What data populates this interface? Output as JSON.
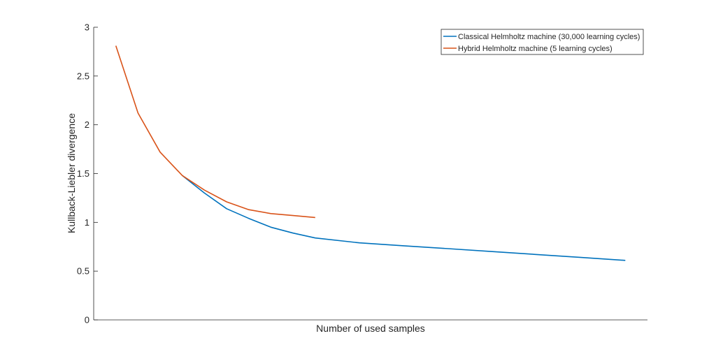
{
  "chart_data": {
    "type": "line",
    "title": "",
    "xlabel": "Number of used samples",
    "ylabel": "Kullback-Liebler divergence",
    "ylim": [
      0,
      3
    ],
    "yticks": [
      0,
      0.5,
      1,
      1.5,
      2,
      2.5,
      3
    ],
    "ytick_labels": [
      "0",
      "0.5",
      "1",
      "1.5",
      "2",
      "2.5",
      "3"
    ],
    "xtick_labels": [],
    "grid": false,
    "legend_position": "top-right",
    "series": [
      {
        "name": "Classical Helmholtz machine (30,000 learning cycles)",
        "color": "#0072BD",
        "x": [
          4,
          5,
          6,
          7,
          8,
          9,
          10,
          12,
          14,
          16,
          18,
          20,
          22,
          24
        ],
        "y": [
          1.48,
          1.3,
          1.14,
          1.04,
          0.95,
          0.89,
          0.84,
          0.79,
          0.76,
          0.73,
          0.7,
          0.67,
          0.64,
          0.61
        ]
      },
      {
        "name": "Hybrid Helmholtz machine (5 learning cycles)",
        "color": "#D95319",
        "x": [
          1,
          2,
          3,
          4,
          5,
          6,
          7,
          8,
          9,
          10
        ],
        "y": [
          2.81,
          2.12,
          1.72,
          1.48,
          1.33,
          1.21,
          1.13,
          1.09,
          1.07,
          1.05
        ]
      }
    ]
  }
}
